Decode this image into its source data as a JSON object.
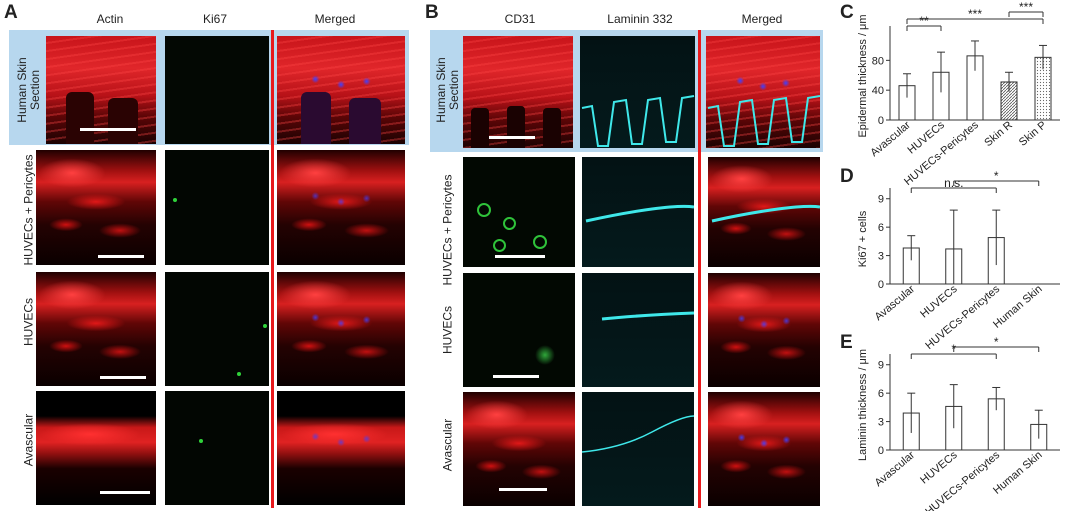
{
  "panels": {
    "a": "A",
    "b": "B",
    "c": "C",
    "d": "D",
    "e": "E"
  },
  "panel_a": {
    "columns": [
      "Actin",
      "Ki67",
      "Merged"
    ],
    "rows": [
      "Human Skin Section",
      "HUVECs + Pericytes",
      "HUVECs",
      "Avascular"
    ]
  },
  "panel_b": {
    "columns": [
      "CD31",
      "Laminin 332",
      "Merged"
    ],
    "rows": [
      "Human Skin Section",
      "HUVECs + Pericytes",
      "HUVECs",
      "Avascular"
    ]
  },
  "chart_data": [
    {
      "panel": "C",
      "type": "bar",
      "ylabel": "Epidermal thickness / μm",
      "categories": [
        "Avascular",
        "HUVECs",
        "HUVECs-Pericytes",
        "Skin R",
        "Skin P"
      ],
      "values": [
        46,
        64,
        86,
        51,
        84
      ],
      "errors": [
        16,
        27,
        20,
        13,
        16
      ],
      "yticks": [
        0,
        40,
        80
      ],
      "ylim": [
        0,
        118
      ],
      "significance": [
        {
          "from": 0,
          "to": 1,
          "label": "**"
        },
        {
          "from": 0,
          "to": 4,
          "label": "***"
        },
        {
          "from": 3,
          "to": 4,
          "label": "***"
        }
      ]
    },
    {
      "panel": "D",
      "type": "bar",
      "ylabel": "Ki67 + cells",
      "categories": [
        "Avascular",
        "HUVECs",
        "HUVECs-Pericytes",
        "Human Skin"
      ],
      "values": [
        3.8,
        3.7,
        4.9,
        0
      ],
      "errors": [
        1.3,
        4.1,
        2.9,
        0
      ],
      "yticks": [
        0,
        3,
        6,
        9
      ],
      "ylim": [
        0,
        9.5
      ],
      "significance": [
        {
          "from": 0,
          "to": 2,
          "label": "n.s."
        },
        {
          "from": 1,
          "to": 3,
          "label": "*"
        }
      ]
    },
    {
      "panel": "E",
      "type": "bar",
      "ylabel": "Laminin thickness / μm",
      "categories": [
        "Avascular",
        "HUVECs",
        "HUVECs-Pericytes",
        "Human Skin"
      ],
      "values": [
        3.9,
        4.6,
        5.4,
        2.7
      ],
      "errors": [
        2.1,
        2.3,
        1.2,
        1.5
      ],
      "yticks": [
        0,
        3,
        6,
        9
      ],
      "ylim": [
        0,
        9.5
      ],
      "significance": [
        {
          "from": 0,
          "to": 2,
          "label": "*"
        },
        {
          "from": 1,
          "to": 3,
          "label": "*"
        }
      ]
    }
  ]
}
